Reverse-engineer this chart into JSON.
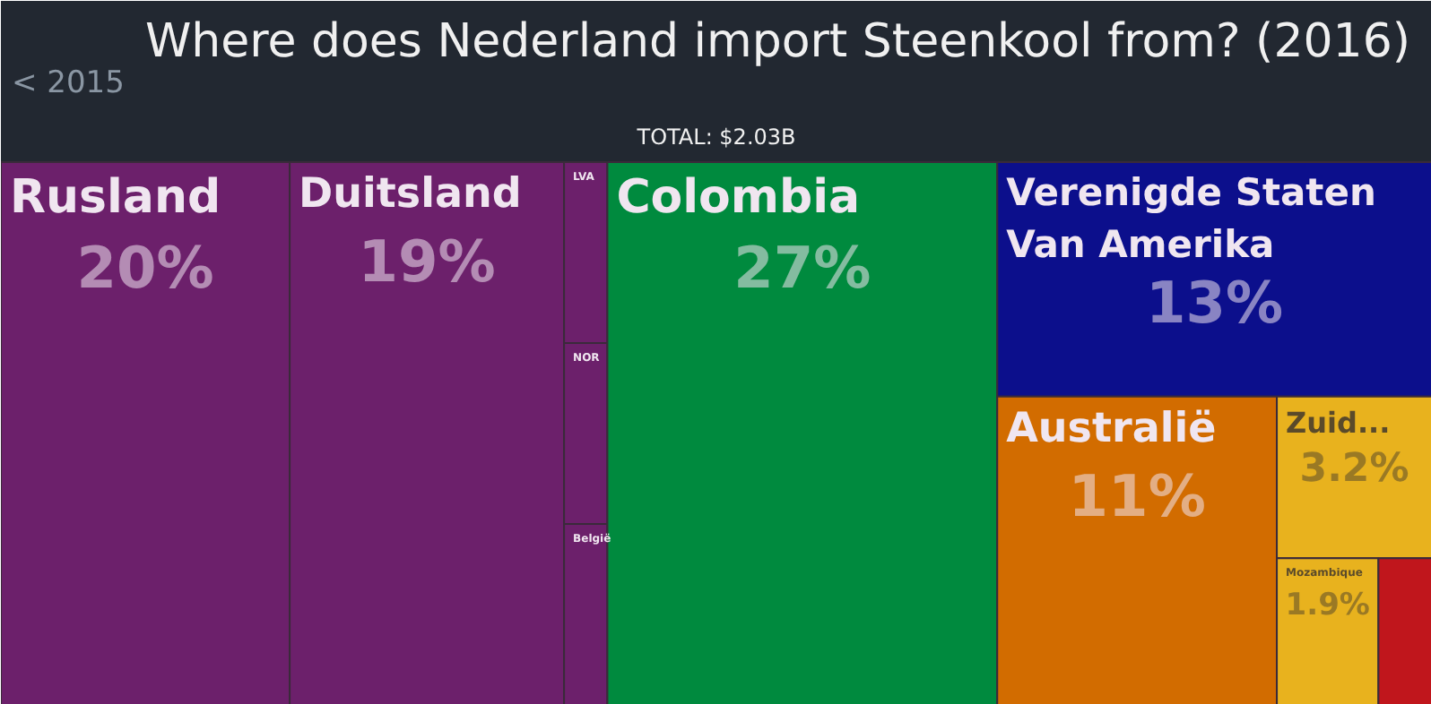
{
  "chart_data": {
    "type": "other",
    "title": "Where does Nederland import Steenkool from? (2016)",
    "subtitle": "TOTAL: $2.03B",
    "annotations": [
      "< 2015"
    ],
    "categories": [
      "Rusland",
      "Duitsland",
      "LVA",
      "NOR",
      "België",
      "Colombia",
      "Verenigde Staten Van Amerika",
      "Australië",
      "Zuid...",
      "Mozambique",
      null
    ],
    "values": [
      20,
      19,
      null,
      null,
      null,
      27,
      13,
      11,
      3.2,
      1.9,
      null
    ],
    "value_labels": [
      "20%",
      "19%",
      null,
      null,
      null,
      "27%",
      "13%",
      "11%",
      "3.2%",
      "1.9%",
      null
    ],
    "colors": [
      "#6c206b",
      "#6c206b",
      "#6c206b",
      "#6c206b",
      "#6c206b",
      "#008a3e",
      "#0c0f8c",
      "#d26c00",
      "#e8b21e",
      "#e8b21e",
      "#c0161c"
    ]
  }
}
